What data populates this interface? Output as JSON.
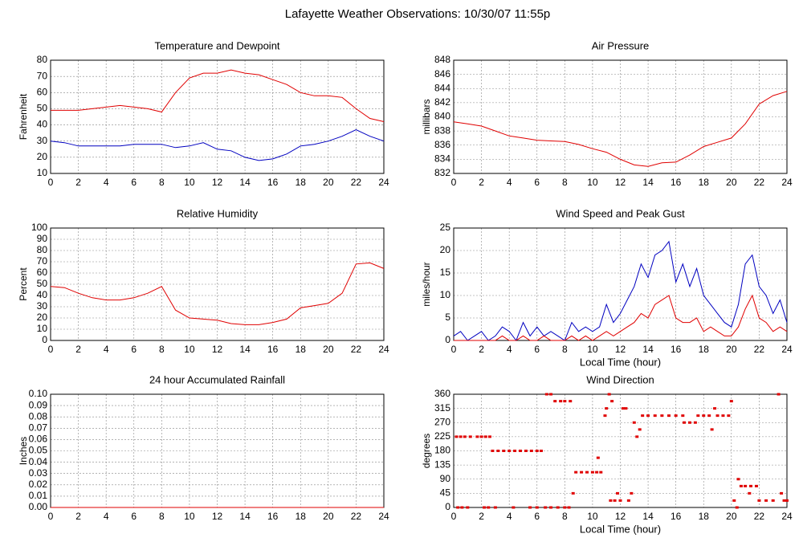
{
  "title": "Lafayette Weather Observations: 10/30/07 11:55p",
  "chart_data": [
    {
      "type": "line",
      "title": "Temperature and Dewpoint",
      "ylabel": "Fahrenheit",
      "x": [
        0,
        1,
        2,
        3,
        4,
        5,
        6,
        7,
        8,
        9,
        10,
        11,
        12,
        13,
        14,
        15,
        16,
        17,
        18,
        19,
        20,
        21,
        22,
        23,
        24
      ],
      "series": [
        {
          "color": "#e00000",
          "values": [
            49,
            49,
            49,
            50,
            51,
            52,
            51,
            50,
            48,
            60,
            69,
            72,
            72,
            74,
            72,
            71,
            68,
            65,
            60,
            58,
            58,
            57,
            50,
            44,
            42
          ]
        },
        {
          "color": "#0000c0",
          "values": [
            30,
            29,
            27,
            27,
            27,
            27,
            28,
            28,
            28,
            26,
            27,
            29,
            25,
            24,
            20,
            18,
            19,
            22,
            27,
            28,
            30,
            33,
            37,
            33,
            30
          ]
        }
      ],
      "xlim": [
        0,
        24
      ],
      "xticks": [
        0,
        2,
        4,
        6,
        8,
        10,
        12,
        14,
        16,
        18,
        20,
        22,
        24
      ],
      "ylim": [
        10,
        80
      ],
      "yticks": [
        10,
        20,
        30,
        40,
        50,
        60,
        70,
        80
      ],
      "grid": true
    },
    {
      "type": "line",
      "title": "Air Pressure",
      "ylabel": "millibars",
      "x": [
        0,
        1,
        2,
        3,
        4,
        5,
        6,
        7,
        8,
        9,
        10,
        11,
        12,
        13,
        14,
        15,
        16,
        17,
        18,
        19,
        20,
        21,
        22,
        23,
        24
      ],
      "series": [
        {
          "color": "#e00000",
          "values": [
            839.3,
            839,
            838.7,
            838,
            837.3,
            837,
            836.7,
            836.6,
            836.5,
            836.1,
            835.5,
            835,
            834,
            833.2,
            833,
            833.5,
            833.6,
            834.6,
            835.8,
            836.4,
            837,
            839,
            841.8,
            843,
            843.6
          ]
        }
      ],
      "xlim": [
        0,
        24
      ],
      "xticks": [
        0,
        2,
        4,
        6,
        8,
        10,
        12,
        14,
        16,
        18,
        20,
        22,
        24
      ],
      "ylim": [
        832,
        848
      ],
      "yticks": [
        832,
        834,
        836,
        838,
        840,
        842,
        844,
        846,
        848
      ],
      "grid": true
    },
    {
      "type": "line",
      "title": "Relative Humidity",
      "ylabel": "Percent",
      "x": [
        0,
        1,
        2,
        3,
        4,
        5,
        6,
        7,
        8,
        9,
        10,
        11,
        12,
        13,
        14,
        15,
        16,
        17,
        18,
        19,
        20,
        21,
        22,
        23,
        24
      ],
      "series": [
        {
          "color": "#e00000",
          "values": [
            48,
            47,
            42,
            38,
            36,
            36,
            38,
            42,
            48,
            27,
            20,
            19,
            18,
            15,
            14,
            14,
            16,
            19,
            29,
            31,
            33,
            42,
            68,
            69,
            64
          ]
        }
      ],
      "xlim": [
        0,
        24
      ],
      "xticks": [
        0,
        2,
        4,
        6,
        8,
        10,
        12,
        14,
        16,
        18,
        20,
        22,
        24
      ],
      "ylim": [
        0,
        100
      ],
      "yticks": [
        0,
        10,
        20,
        30,
        40,
        50,
        60,
        70,
        80,
        90,
        100
      ],
      "grid": true
    },
    {
      "type": "line",
      "title": "Wind Speed and Peak Gust",
      "ylabel": "miles/hour",
      "xlabel": "Local Time (hour)",
      "x": [
        0,
        0.5,
        1,
        1.5,
        2,
        2.5,
        3,
        3.5,
        4,
        4.5,
        5,
        5.5,
        6,
        6.5,
        7,
        7.5,
        8,
        8.5,
        9,
        9.5,
        10,
        10.5,
        11,
        11.5,
        12,
        12.5,
        13,
        13.5,
        14,
        14.5,
        15,
        15.5,
        16,
        16.5,
        17,
        17.5,
        18,
        18.5,
        19,
        19.5,
        20,
        20.5,
        21,
        21.5,
        22,
        22.5,
        23,
        23.5,
        24
      ],
      "series": [
        {
          "color": "#0000c0",
          "values": [
            1,
            2,
            0,
            1,
            2,
            0,
            1,
            3,
            2,
            0,
            4,
            1,
            3,
            1,
            2,
            1,
            0,
            4,
            2,
            3,
            2,
            3,
            8,
            4,
            6,
            9,
            12,
            17,
            14,
            19,
            20,
            22,
            13,
            17,
            12,
            16,
            10,
            8,
            6,
            4,
            3,
            8,
            17,
            19,
            12,
            10,
            6,
            9,
            4
          ]
        },
        {
          "color": "#e00000",
          "values": [
            0,
            0,
            0,
            0,
            0,
            0,
            0,
            1,
            0,
            0,
            1,
            0,
            0,
            1,
            0,
            0,
            0,
            1,
            0,
            1,
            0,
            1,
            2,
            1,
            2,
            3,
            4,
            6,
            5,
            8,
            9,
            10,
            5,
            4,
            4,
            5,
            2,
            3,
            2,
            1,
            1,
            3,
            7,
            10,
            5,
            4,
            2,
            3,
            2
          ]
        }
      ],
      "xlim": [
        0,
        24
      ],
      "xticks": [
        0,
        2,
        4,
        6,
        8,
        10,
        12,
        14,
        16,
        18,
        20,
        22,
        24
      ],
      "ylim": [
        0,
        25
      ],
      "yticks": [
        0,
        5,
        10,
        15,
        20,
        25
      ],
      "grid": true
    },
    {
      "type": "line",
      "title": "24 hour Accumulated Rainfall",
      "ylabel": "Inches",
      "x": [
        0,
        2,
        4,
        6,
        8,
        10,
        12,
        14,
        16,
        18,
        20,
        22,
        24
      ],
      "series": [
        {
          "color": "#e00000",
          "values": [
            0,
            0,
            0,
            0,
            0,
            0,
            0,
            0,
            0,
            0,
            0,
            0,
            0
          ]
        }
      ],
      "xlim": [
        0,
        24
      ],
      "xticks": [
        0,
        2,
        4,
        6,
        8,
        10,
        12,
        14,
        16,
        18,
        20,
        22,
        24
      ],
      "ylim": [
        0,
        0.1
      ],
      "yticks": [
        {
          "value": 0,
          "label": "0.00"
        },
        0.01,
        0.02,
        0.03,
        0.04,
        0.05,
        0.06,
        0.07,
        0.08,
        0.09,
        {
          "value": 0.1,
          "label": "0.10"
        }
      ],
      "grid": true
    },
    {
      "type": "scatter",
      "title": "Wind Direction",
      "ylabel": "degrees",
      "xlabel": "Local Time (hour)",
      "color": "#e00000",
      "x": [
        0.2,
        0.5,
        0.8,
        1.2,
        1.7,
        2,
        2.3,
        2.6,
        0.3,
        0.6,
        1,
        2.2,
        2.5,
        2.8,
        3.2,
        3.6,
        4,
        4.4,
        4.8,
        5.2,
        5.6,
        6,
        6.3,
        3,
        4.3,
        5.5,
        6,
        6.6,
        7,
        7.5,
        8,
        8.3,
        6.7,
        7,
        7.3,
        7.7,
        8,
        8.4,
        8.6,
        8.8,
        9.2,
        9.6,
        10,
        10.3,
        10.6,
        10.4,
        10.9,
        11,
        11.2,
        11.4,
        11.3,
        11.6,
        11.8,
        12,
        12.2,
        12.4,
        12.6,
        12.8,
        13,
        13.2,
        13.4,
        13.6,
        14,
        14.5,
        15,
        15.5,
        16,
        16.5,
        16.6,
        17,
        17.4,
        17.6,
        18,
        18.4,
        18.6,
        18.8,
        19,
        19.4,
        19.8,
        20,
        20.2,
        20.4,
        20.5,
        20.7,
        21,
        21.4,
        21.8,
        21.3,
        22,
        22.5,
        23,
        23.4,
        23.6,
        23.8,
        24
      ],
      "values": [
        225,
        225,
        225,
        225,
        225,
        225,
        225,
        225,
        0,
        0,
        0,
        0,
        0,
        180,
        180,
        180,
        180,
        180,
        180,
        180,
        180,
        180,
        180,
        0,
        0,
        0,
        0,
        0,
        0,
        0,
        0,
        0,
        360,
        360,
        338,
        338,
        338,
        338,
        45,
        112,
        112,
        112,
        112,
        112,
        112,
        158,
        292,
        315,
        360,
        338,
        22,
        22,
        45,
        22,
        315,
        315,
        22,
        45,
        270,
        225,
        248,
        292,
        292,
        292,
        292,
        292,
        292,
        292,
        270,
        270,
        270,
        292,
        292,
        292,
        248,
        315,
        292,
        292,
        292,
        338,
        22,
        0,
        90,
        68,
        68,
        68,
        68,
        45,
        22,
        22,
        22,
        360,
        45,
        22,
        22
      ],
      "xlim": [
        0,
        24
      ],
      "xticks": [
        0,
        2,
        4,
        6,
        8,
        10,
        12,
        14,
        16,
        18,
        20,
        22,
        24
      ],
      "ylim": [
        0,
        360
      ],
      "yticks": [
        0,
        45,
        90,
        135,
        180,
        225,
        270,
        315,
        360
      ],
      "grid": true
    }
  ]
}
